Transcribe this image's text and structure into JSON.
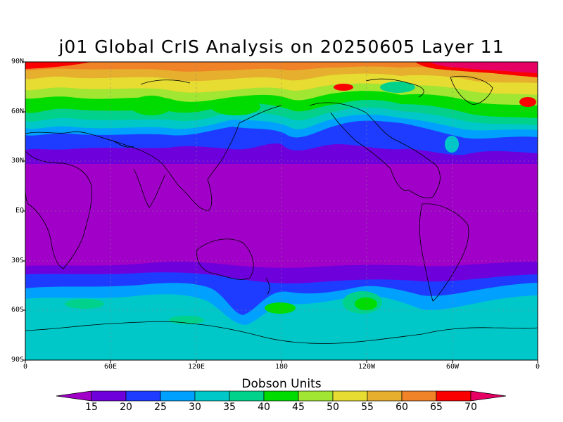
{
  "title": "j01 Global CrIS Analysis on 20250605 Layer 11",
  "y_ticks": [
    "90N",
    "60N",
    "30N",
    "EQ",
    "30S",
    "60S",
    "90S"
  ],
  "x_ticks": [
    "0",
    "60E",
    "120E",
    "180",
    "120W",
    "60W",
    "0"
  ],
  "colorbar": {
    "label": "Dobson Units",
    "levels": [
      "15",
      "20",
      "25",
      "30",
      "35",
      "40",
      "45",
      "50",
      "55",
      "60",
      "65",
      "70"
    ],
    "colors": [
      "#a000c8",
      "#6e00dc",
      "#1e3cff",
      "#00a0ff",
      "#00c8c8",
      "#00d28c",
      "#00dc00",
      "#a0e632",
      "#e6dc32",
      "#e6af2d",
      "#f08228",
      "#fa0000",
      "#e60064"
    ]
  },
  "chart_data": {
    "type": "heatmap",
    "title": "j01 Global CrIS Analysis on 20250605 Layer 11",
    "xlabel": "",
    "ylabel": "",
    "xlim": [
      "0",
      "0"
    ],
    "ylim": [
      "90S",
      "90N"
    ],
    "grid": true,
    "colorbar_label": "Dobson Units",
    "latitude_bands_DU": [
      {
        "lat": "90N",
        "value": 70
      },
      {
        "lat": "75N",
        "value": 58
      },
      {
        "lat": "60N",
        "value": 45
      },
      {
        "lat": "45N",
        "value": 28
      },
      {
        "lat": "30N",
        "value": 17
      },
      {
        "lat": "EQ",
        "value": 14
      },
      {
        "lat": "30S",
        "value": 17
      },
      {
        "lat": "45S",
        "value": 23
      },
      {
        "lat": "60S",
        "value": 30
      },
      {
        "lat": "75S",
        "value": 31
      },
      {
        "lat": "90S",
        "value": 30
      }
    ]
  }
}
